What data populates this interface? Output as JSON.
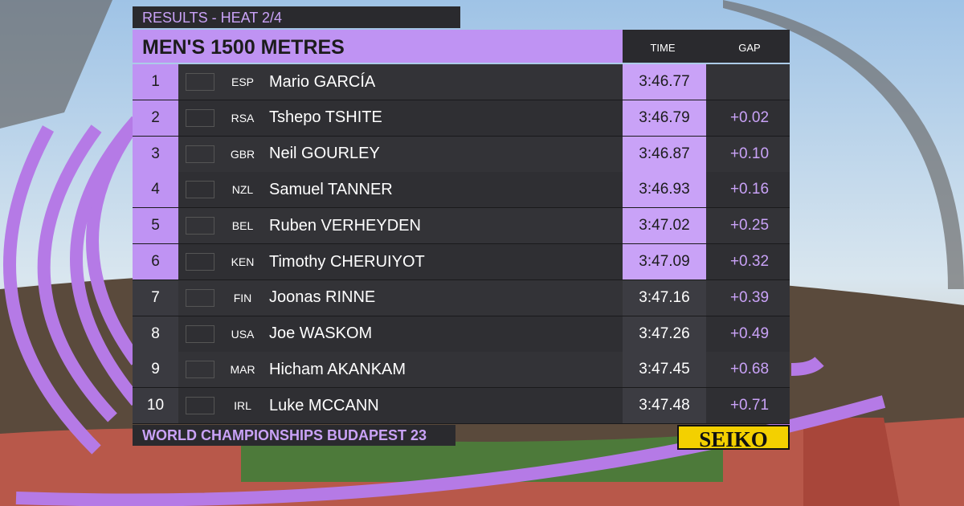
{
  "header": {
    "label": "RESULTS - HEAT 2/4",
    "title": "MEN'S 1500 METRES",
    "columns": {
      "time": "TIME",
      "gap": "GAP"
    }
  },
  "rows": [
    {
      "rank": 1,
      "country": "ESP",
      "name": "Mario GARCÍA",
      "time": "3:46.77"
    },
    {
      "rank": 2,
      "country": "RSA",
      "name": "Tshepo TSHITE",
      "time": "3:46.79",
      "gap": "+0.02"
    },
    {
      "rank": 3,
      "country": "GBR",
      "name": "Neil GOURLEY",
      "time": "3:46.87",
      "gap": "+0.10"
    },
    {
      "rank": 4,
      "country": "NZL",
      "name": "Samuel TANNER",
      "time": "3:46.93",
      "gap": "+0.16"
    },
    {
      "rank": 5,
      "country": "BEL",
      "name": "Ruben VERHEYDEN",
      "time": "3:47.02",
      "gap": "+0.25"
    },
    {
      "rank": 6,
      "country": "KEN",
      "name": "Timothy CHERUIYOT",
      "time": "3:47.09",
      "gap": "+0.32"
    },
    {
      "rank": 7,
      "country": "FIN",
      "name": "Joonas RINNE",
      "time": "3:47.16",
      "gap": "+0.39"
    },
    {
      "rank": 8,
      "country": "USA",
      "name": "Joe WASKOM",
      "time": "3:47.26",
      "gap": "+0.49"
    },
    {
      "rank": 9,
      "country": "MAR",
      "name": "Hicham AKANKAM",
      "time": "3:47.45",
      "gap": "+0.68"
    },
    {
      "rank": 10,
      "country": "IRL",
      "name": "Luke MCCANN",
      "time": "3:47.48",
      "gap": "+0.71"
    }
  ],
  "footer": {
    "event": "WORLD CHAMPIONSHIPS BUDAPEST 23",
    "sponsor": "SEIKO"
  }
}
